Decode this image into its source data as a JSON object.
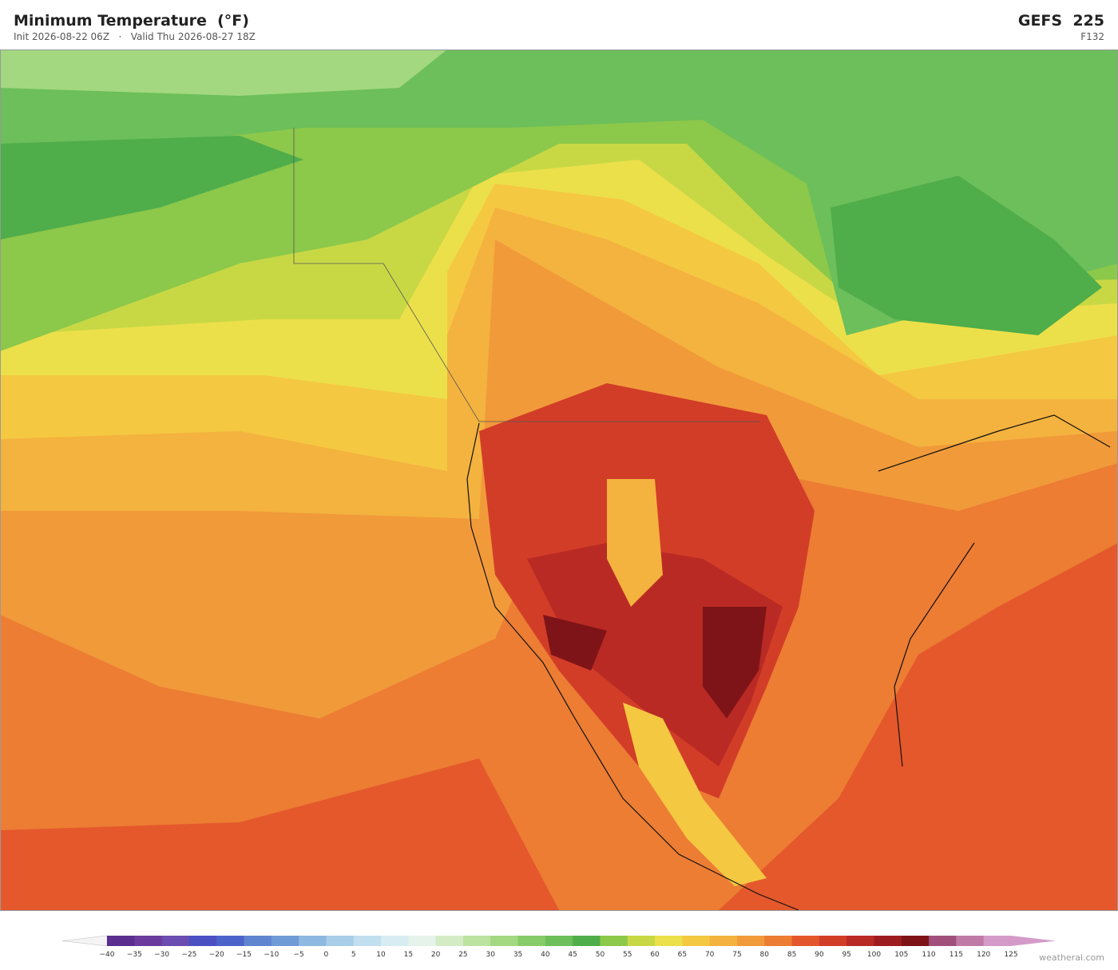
{
  "header": {
    "title": "Minimum Temperature  (°F)",
    "subtitle": "Init 2026-08-22 06Z   ·   Valid Thu 2026-08-27 18Z",
    "model": "GEFS  225",
    "forecast_hour": "F132"
  },
  "colorbar": {
    "labels": [
      "−40",
      "−35",
      "−30",
      "−25",
      "−20",
      "−15",
      "−10",
      "−5",
      "0",
      "5",
      "10",
      "15",
      "20",
      "25",
      "30",
      "35",
      "40",
      "45",
      "50",
      "55",
      "60",
      "65",
      "70",
      "75",
      "80",
      "85",
      "90",
      "95",
      "100",
      "105",
      "110",
      "115",
      "120",
      "125"
    ],
    "colors": [
      "#5b2d8e",
      "#6a3a9c",
      "#6b4cb0",
      "#4a4fc2",
      "#4c63c9",
      "#5f85d0",
      "#6f9bd6",
      "#8db8e0",
      "#a8cde8",
      "#c2dff0",
      "#d8ecf3",
      "#e6f3ea",
      "#d3ecc6",
      "#bde3a0",
      "#a3d880",
      "#86cc68",
      "#6cbf5a",
      "#4fad4a",
      "#8cc84a",
      "#c8d845",
      "#ece04a",
      "#f5c842",
      "#f4b23e",
      "#f19a3a",
      "#ec7d33",
      "#e4572c",
      "#d23d28",
      "#b92a24",
      "#9d1c1f",
      "#7f1418",
      "#a0507a",
      "#c07aa6",
      "#d49bc8"
    ]
  },
  "footer": {
    "credit": "weatherai.com"
  }
}
